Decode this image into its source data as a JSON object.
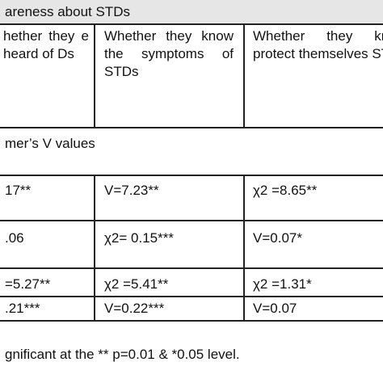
{
  "title": "areness about STDs",
  "headers": {
    "col1": "hether they e heard of Ds",
    "col2": "Whether they know the symptoms of STDs",
    "col3": "Whether they know protect themselves STDs"
  },
  "section_label": "mer’s V values",
  "rows": [
    [
      "17**",
      "V=7.23**",
      "χ2 =8.65**"
    ],
    [
      ".06",
      "χ2= 0.15***",
      "V=0.07*"
    ],
    [
      "=5.27**",
      "χ2 =5.41**",
      "χ2 =1.31*"
    ],
    [
      ".21***",
      "V=0.22***",
      "V=0.07"
    ]
  ],
  "footnote": "gnificant at the ** p=0.01 & *0.05 level."
}
